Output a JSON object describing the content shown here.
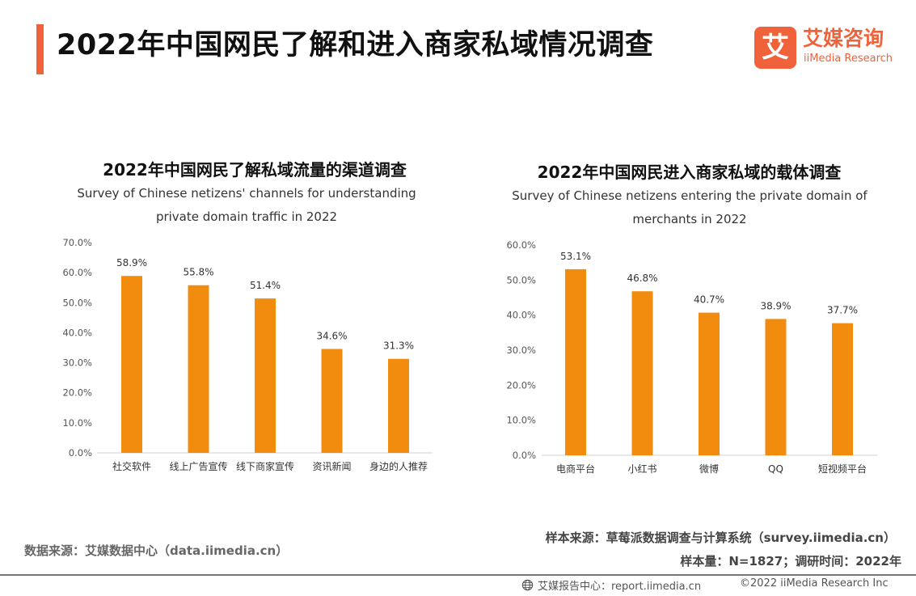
{
  "header": {
    "title": "2022年中国网民了解和进入商家私域情况调查",
    "logo_cn": "艾媒咨询",
    "logo_en": "iiMedia Research",
    "logo_mark": "艾",
    "accent_color": "#f0623a"
  },
  "chart_data": [
    {
      "type": "bar",
      "title": "2022年中国网民了解私域流量的渠道调查",
      "subtitle": "Survey of Chinese netizens' channels for understanding private domain traffic in 2022",
      "categories": [
        "社交软件",
        "线上广告宣传",
        "线下商家宣传",
        "资讯新闻",
        "身边的人推荐"
      ],
      "values": [
        58.9,
        55.8,
        51.4,
        34.6,
        31.3
      ],
      "value_labels": [
        "58.9%",
        "55.8%",
        "51.4%",
        "34.6%",
        "31.3%"
      ],
      "yticks": [
        "0.0%",
        "10.0%",
        "20.0%",
        "30.0%",
        "40.0%",
        "50.0%",
        "60.0%",
        "70.0%"
      ],
      "ylim": [
        0,
        70
      ],
      "bar_color": "#f28c0f",
      "grid": false
    },
    {
      "type": "bar",
      "title": "2022年中国网民进入商家私域的载体调查",
      "subtitle": "Survey of Chinese netizens entering the private domain of merchants in 2022",
      "categories": [
        "电商平台",
        "小红书",
        "微博",
        "QQ",
        "短视频平台"
      ],
      "values": [
        53.1,
        46.8,
        40.7,
        38.9,
        37.7
      ],
      "value_labels": [
        "53.1%",
        "46.8%",
        "40.7%",
        "38.9%",
        "37.7%"
      ],
      "yticks": [
        "0.0%",
        "10.0%",
        "20.0%",
        "30.0%",
        "40.0%",
        "50.0%",
        "60.0%"
      ],
      "ylim": [
        0,
        60
      ],
      "bar_color": "#f28c0f",
      "grid": false
    }
  ],
  "footer": {
    "data_source": "数据来源：艾媒数据中心（data.iimedia.cn）",
    "sample_source": "样本来源：草莓派数据调查与计算系统（survey.iimedia.cn）",
    "sample_info": "样本量：N=1827；调研时间：2022年",
    "report_center": "艾媒报告中心：report.iimedia.cn",
    "copyright": "©2022  iiMedia Research  Inc",
    "globe_icon": "globe-icon"
  }
}
